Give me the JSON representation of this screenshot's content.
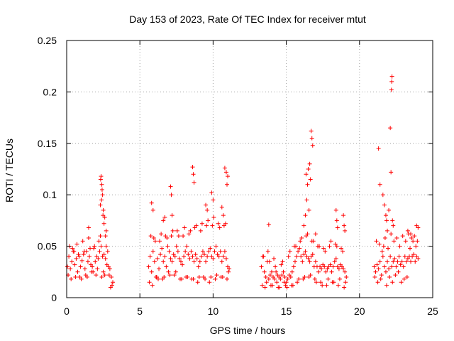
{
  "chart_data": {
    "type": "scatter",
    "title": "Day 153 of 2023, Rate Of TEC Index for receiver mtut",
    "xlabel": "GPS time / hours",
    "ylabel": "ROTI / TECUs",
    "xlim": [
      0,
      25
    ],
    "ylim": [
      0,
      0.25
    ],
    "xticks": [
      0,
      5,
      10,
      15,
      20,
      25
    ],
    "yticks": [
      0,
      0.05,
      0.1,
      0.15,
      0.2,
      0.25
    ],
    "xtick_labels": [
      "0",
      "5",
      "10",
      "15",
      "20",
      "25"
    ],
    "ytick_labels": [
      "0",
      "0.05",
      "0.1",
      "0.15",
      "0.2",
      "0.25"
    ],
    "grid": true,
    "marker": "plus",
    "color": "#ff0000",
    "series": [
      {
        "x": [
          0.05,
          0.15,
          0.25,
          0.35,
          0.45,
          0.55,
          0.65,
          0.75,
          0.85,
          0.95,
          1.05,
          1.15,
          1.25,
          1.35,
          1.45,
          1.55,
          1.65,
          1.75,
          1.85,
          1.95,
          2.05,
          2.15,
          2.25,
          2.35,
          2.45,
          2.55,
          2.65,
          2.75,
          2.85,
          2.95,
          3.05,
          3.15,
          0.1,
          0.3,
          0.5,
          0.7,
          0.9,
          1.1,
          1.3,
          1.5,
          1.7,
          1.9,
          2.1,
          2.3,
          2.5,
          2.7,
          2.9,
          3.1,
          0.2,
          0.4,
          0.6,
          0.8,
          1.0,
          1.2,
          1.4,
          1.6,
          1.8,
          2.0,
          2.2,
          2.4,
          2.6,
          2.8,
          3.0,
          1.5,
          2.35,
          2.4,
          2.45,
          2.3,
          2.5,
          2.6,
          2.7,
          2.65,
          2.55,
          2.38,
          2.42,
          2.32,
          2.48,
          5.6,
          5.7,
          5.8,
          5.9,
          6.0,
          6.1,
          6.2,
          6.3,
          6.4,
          6.5,
          6.6,
          6.7,
          6.8,
          6.9,
          7.0,
          7.1,
          7.2,
          7.3,
          7.4,
          7.5,
          7.6,
          7.7,
          7.8,
          7.9,
          8.0,
          8.1,
          8.2,
          8.3,
          8.4,
          8.5,
          8.6,
          8.7,
          8.8,
          8.9,
          9.0,
          9.1,
          9.2,
          9.3,
          9.4,
          9.5,
          9.6,
          9.7,
          9.8,
          9.9,
          10.0,
          10.1,
          10.2,
          10.3,
          10.4,
          10.5,
          10.6,
          10.7,
          10.8,
          10.9,
          11.0,
          11.1,
          5.65,
          5.85,
          6.05,
          6.25,
          6.45,
          6.65,
          6.85,
          7.05,
          7.25,
          7.45,
          7.65,
          7.85,
          8.05,
          8.25,
          8.45,
          8.65,
          8.85,
          9.05,
          9.25,
          9.45,
          9.65,
          9.85,
          10.05,
          10.25,
          10.45,
          10.65,
          10.85,
          11.05,
          5.75,
          5.95,
          6.15,
          6.35,
          6.55,
          6.75,
          6.95,
          7.15,
          7.35,
          7.55,
          7.75,
          7.95,
          8.15,
          8.35,
          8.55,
          8.75,
          8.95,
          9.15,
          9.35,
          9.55,
          9.75,
          9.95,
          10.15,
          10.35,
          10.55,
          10.75,
          10.95,
          5.8,
          5.9,
          7.1,
          7.15,
          8.6,
          8.65,
          8.7,
          10.8,
          10.9,
          11.0,
          10.95,
          9.9,
          10.0,
          10.6,
          10.7,
          9.5,
          9.6,
          7.2,
          6.6,
          6.7,
          13.3,
          13.4,
          13.5,
          13.6,
          13.7,
          13.8,
          13.9,
          14.0,
          14.1,
          14.2,
          14.3,
          14.4,
          14.5,
          14.6,
          14.7,
          14.8,
          14.9,
          15.0,
          15.1,
          15.2,
          15.3,
          15.4,
          15.5,
          15.6,
          15.7,
          15.8,
          15.9,
          16.0,
          16.1,
          16.2,
          16.3,
          16.4,
          16.5,
          16.6,
          16.7,
          16.8,
          16.9,
          17.0,
          17.1,
          17.2,
          17.3,
          17.4,
          17.5,
          17.6,
          17.7,
          17.8,
          17.9,
          18.0,
          18.1,
          18.2,
          18.3,
          18.4,
          18.5,
          18.6,
          18.7,
          18.8,
          18.9,
          19.0,
          19.1,
          13.35,
          13.55,
          13.75,
          13.95,
          14.15,
          14.35,
          14.55,
          14.75,
          14.95,
          15.15,
          15.35,
          15.55,
          15.75,
          15.95,
          16.15,
          16.35,
          16.55,
          16.75,
          16.95,
          17.15,
          17.35,
          17.55,
          17.75,
          17.95,
          18.15,
          18.35,
          18.55,
          18.75,
          18.95,
          13.45,
          13.65,
          13.85,
          14.05,
          14.25,
          14.45,
          14.65,
          14.85,
          15.05,
          15.25,
          15.45,
          15.65,
          15.85,
          16.05,
          16.25,
          16.45,
          16.65,
          16.85,
          17.05,
          17.25,
          17.45,
          17.65,
          17.85,
          18.05,
          18.25,
          18.45,
          18.65,
          18.85,
          19.05,
          13.8,
          16.3,
          16.4,
          16.45,
          16.5,
          16.6,
          16.65,
          16.7,
          16.75,
          16.8,
          16.55,
          16.35,
          18.4,
          18.45,
          18.5,
          18.9,
          18.95,
          19.0,
          17.0,
          16.2,
          21.0,
          21.1,
          21.2,
          21.3,
          21.4,
          21.5,
          21.6,
          21.7,
          21.8,
          21.9,
          22.0,
          22.1,
          22.2,
          22.3,
          22.4,
          22.5,
          22.6,
          22.7,
          22.8,
          22.9,
          23.0,
          23.1,
          23.2,
          23.3,
          23.4,
          23.5,
          23.6,
          23.7,
          23.8,
          23.9,
          24.0,
          21.05,
          21.25,
          21.45,
          21.65,
          21.85,
          22.05,
          22.25,
          22.45,
          22.65,
          22.85,
          23.05,
          23.25,
          23.45,
          23.65,
          23.85,
          21.15,
          21.35,
          21.55,
          21.75,
          21.95,
          22.15,
          22.35,
          22.55,
          22.75,
          22.95,
          23.15,
          23.35,
          23.55,
          23.75,
          23.95,
          21.3,
          21.4,
          21.6,
          21.7,
          21.8,
          21.85,
          22.1,
          22.15,
          22.18,
          22.2,
          22.22,
          22.25,
          22.3,
          21.9,
          22.0,
          23.9,
          24.0,
          23.3,
          23.5
        ],
        "y": [
          0.03,
          0.04,
          0.028,
          0.035,
          0.045,
          0.032,
          0.038,
          0.025,
          0.04,
          0.03,
          0.036,
          0.042,
          0.028,
          0.045,
          0.035,
          0.04,
          0.032,
          0.03,
          0.048,
          0.035,
          0.04,
          0.038,
          0.045,
          0.05,
          0.04,
          0.042,
          0.038,
          0.032,
          0.03,
          0.028,
          0.02,
          0.015,
          0.022,
          0.018,
          0.045,
          0.052,
          0.02,
          0.055,
          0.022,
          0.058,
          0.025,
          0.05,
          0.028,
          0.06,
          0.025,
          0.05,
          0.022,
          0.012,
          0.05,
          0.048,
          0.02,
          0.042,
          0.018,
          0.045,
          0.02,
          0.048,
          0.025,
          0.022,
          0.055,
          0.02,
          0.022,
          0.045,
          0.01,
          0.068,
          0.118,
          0.11,
          0.1,
          0.09,
          0.085,
          0.078,
          0.065,
          0.06,
          0.072,
          0.095,
          0.105,
          0.115,
          0.08,
          0.03,
          0.04,
          0.025,
          0.045,
          0.035,
          0.02,
          0.038,
          0.028,
          0.042,
          0.048,
          0.035,
          0.04,
          0.03,
          0.05,
          0.045,
          0.038,
          0.035,
          0.042,
          0.04,
          0.05,
          0.045,
          0.038,
          0.035,
          0.032,
          0.04,
          0.045,
          0.05,
          0.042,
          0.038,
          0.045,
          0.04,
          0.035,
          0.042,
          0.038,
          0.03,
          0.035,
          0.04,
          0.045,
          0.042,
          0.035,
          0.04,
          0.045,
          0.048,
          0.04,
          0.038,
          0.045,
          0.05,
          0.042,
          0.04,
          0.045,
          0.035,
          0.04,
          0.045,
          0.038,
          0.03,
          0.028,
          0.015,
          0.012,
          0.055,
          0.018,
          0.062,
          0.02,
          0.058,
          0.022,
          0.065,
          0.025,
          0.06,
          0.018,
          0.068,
          0.02,
          0.065,
          0.018,
          0.07,
          0.02,
          0.072,
          0.018,
          0.075,
          0.02,
          0.078,
          0.022,
          0.068,
          0.02,
          0.072,
          0.025,
          0.06,
          0.058,
          0.02,
          0.055,
          0.018,
          0.06,
          0.025,
          0.06,
          0.022,
          0.065,
          0.018,
          0.06,
          0.02,
          0.062,
          0.018,
          0.068,
          0.015,
          0.065,
          0.02,
          0.07,
          0.015,
          0.07,
          0.018,
          0.072,
          0.02,
          0.07,
          0.018,
          0.092,
          0.085,
          0.108,
          0.1,
          0.127,
          0.12,
          0.112,
          0.126,
          0.122,
          0.118,
          0.11,
          0.102,
          0.095,
          0.088,
          0.08,
          0.09,
          0.085,
          0.08,
          0.075,
          0.078,
          0.03,
          0.04,
          0.025,
          0.02,
          0.035,
          0.018,
          0.022,
          0.025,
          0.02,
          0.018,
          0.025,
          0.022,
          0.02,
          0.018,
          0.022,
          0.025,
          0.02,
          0.015,
          0.018,
          0.022,
          0.02,
          0.025,
          0.03,
          0.035,
          0.04,
          0.045,
          0.048,
          0.04,
          0.035,
          0.042,
          0.045,
          0.04,
          0.038,
          0.035,
          0.04,
          0.042,
          0.03,
          0.035,
          0.03,
          0.025,
          0.03,
          0.028,
          0.032,
          0.03,
          0.025,
          0.028,
          0.03,
          0.032,
          0.025,
          0.03,
          0.035,
          0.038,
          0.03,
          0.028,
          0.032,
          0.03,
          0.028,
          0.025,
          0.02,
          0.012,
          0.01,
          0.045,
          0.012,
          0.038,
          0.015,
          0.01,
          0.035,
          0.012,
          0.04,
          0.012,
          0.05,
          0.015,
          0.055,
          0.018,
          0.06,
          0.02,
          0.055,
          0.018,
          0.05,
          0.015,
          0.048,
          0.012,
          0.05,
          0.015,
          0.052,
          0.012,
          0.048,
          0.01,
          0.04,
          0.015,
          0.035,
          0.012,
          0.03,
          0.01,
          0.032,
          0.015,
          0.01,
          0.045,
          0.012,
          0.05,
          0.018,
          0.058,
          0.02,
          0.062,
          0.022,
          0.055,
          0.015,
          0.05,
          0.012,
          0.045,
          0.018,
          0.055,
          0.015,
          0.05,
          0.018,
          0.045,
          0.015,
          0.071,
          0.08,
          0.095,
          0.11,
          0.125,
          0.13,
          0.115,
          0.162,
          0.155,
          0.148,
          0.085,
          0.12,
          0.085,
          0.075,
          0.068,
          0.08,
          0.07,
          0.065,
          0.062,
          0.07,
          0.03,
          0.025,
          0.032,
          0.028,
          0.035,
          0.022,
          0.04,
          0.03,
          0.025,
          0.035,
          0.028,
          0.04,
          0.03,
          0.035,
          0.038,
          0.03,
          0.035,
          0.04,
          0.032,
          0.035,
          0.03,
          0.04,
          0.035,
          0.038,
          0.04,
          0.035,
          0.04,
          0.042,
          0.035,
          0.04,
          0.038,
          0.02,
          0.015,
          0.018,
          0.05,
          0.012,
          0.02,
          0.015,
          0.022,
          0.025,
          0.015,
          0.018,
          0.02,
          0.048,
          0.055,
          0.05,
          0.055,
          0.052,
          0.045,
          0.058,
          0.048,
          0.062,
          0.055,
          0.058,
          0.05,
          0.06,
          0.055,
          0.062,
          0.058,
          0.06,
          0.055,
          0.145,
          0.11,
          0.1,
          0.09,
          0.08,
          0.075,
          0.165,
          0.122,
          0.202,
          0.21,
          0.215,
          0.075,
          0.07,
          0.065,
          0.085,
          0.07,
          0.068,
          0.065,
          0.062
        ]
      }
    ]
  }
}
